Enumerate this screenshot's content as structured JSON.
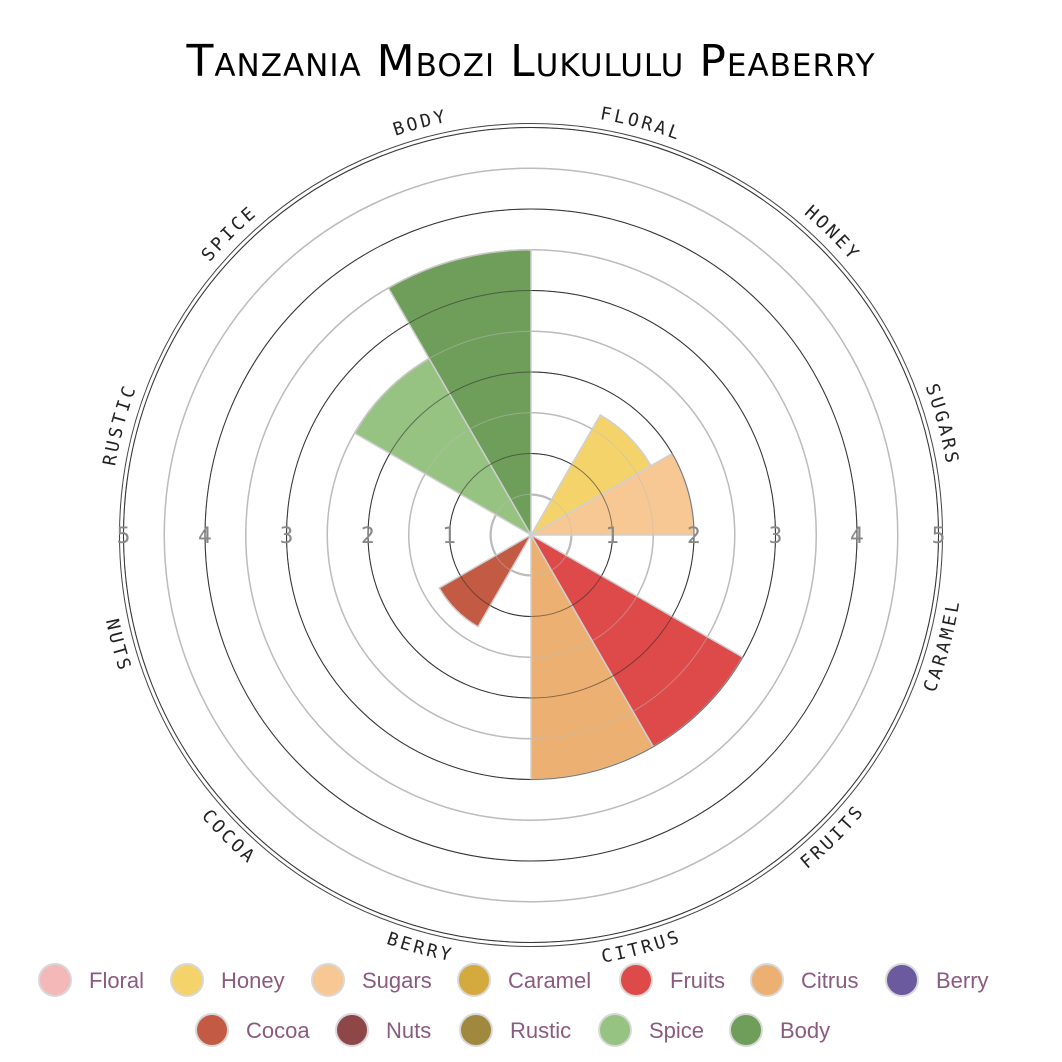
{
  "chart_data": {
    "type": "polar-area",
    "title": "Tanzania Mbozi Lukululu Peaberry",
    "categories": [
      "Floral",
      "Honey",
      "Sugars",
      "Caramel",
      "Fruits",
      "Citrus",
      "Berry",
      "Cocoa",
      "Nuts",
      "Rustic",
      "Spice",
      "Body"
    ],
    "axis_labels": [
      "FLORAL",
      "HONEY",
      "SUGARS",
      "CARAMEL",
      "FRUITS",
      "CITRUS",
      "BERRY",
      "COCOA",
      "NUTS",
      "RUSTIC",
      "SPICE",
      "BODY"
    ],
    "values": [
      0,
      1.7,
      2.0,
      0,
      3.0,
      3.0,
      0,
      1.3,
      0,
      0,
      2.5,
      3.5
    ],
    "colors": [
      "#f4b8b8",
      "#f5d36b",
      "#f7c894",
      "#d4a93e",
      "#de4a4a",
      "#ecb172",
      "#6b5a9e",
      "#c25a44",
      "#8e4748",
      "#a0883e",
      "#96c282",
      "#6f9e5a"
    ],
    "ylim": [
      0,
      5
    ],
    "ticks": [
      "1",
      "2",
      "3",
      "4",
      "5"
    ],
    "legend_position": "bottom",
    "grid": true
  }
}
